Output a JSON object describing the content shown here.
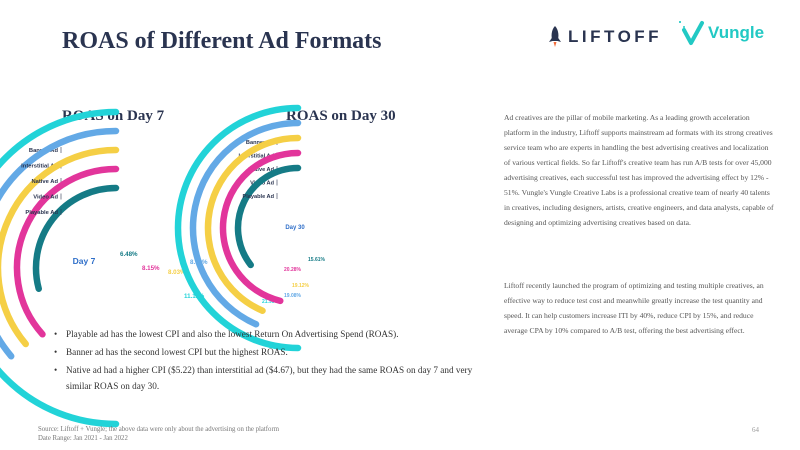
{
  "title": "ROAS of Different Ad Formats",
  "logos": {
    "liftoff": "LIFTOFF",
    "vungle": "Vungle"
  },
  "colors": {
    "banner": "#22d3d8",
    "interstitial": "#63a9e6",
    "native": "#f5cf45",
    "video": "#e2359b",
    "playable": "#157b86",
    "title": "#2a3450"
  },
  "chart_data": [
    {
      "type": "radial-bar",
      "title": "ROAS on Day 7",
      "center_label": "Day 7",
      "series": [
        {
          "name": "Banner Ad",
          "value": 11.11,
          "label": "11.11%"
        },
        {
          "name": "Interstitial Ad",
          "value": 8.03,
          "label": "8.03%"
        },
        {
          "name": "Native Ad",
          "value": 8.03,
          "label": "8.03%"
        },
        {
          "name": "Video Ad",
          "value": 8.15,
          "label": "8.15%"
        },
        {
          "name": "Playable Ad",
          "value": 6.48,
          "label": "6.48%"
        }
      ]
    },
    {
      "type": "radial-bar",
      "title": "ROAS on Day 30",
      "center_label": "Day 30",
      "series": [
        {
          "name": "Banner Ad",
          "value": 21.95,
          "label": "21.95%"
        },
        {
          "name": "Interstitial Ad",
          "value": 19.08,
          "label": "19.08%"
        },
        {
          "name": "Native Ad",
          "value": 19.12,
          "label": "19.12%"
        },
        {
          "name": "Video Ad",
          "value": 20.28,
          "label": "20.28%"
        },
        {
          "name": "Playable Ad",
          "value": 15.61,
          "label": "15.61%"
        }
      ]
    }
  ],
  "paragraphs": [
    "Ad creatives are the pillar of mobile marketing. As a leading growth acceleration platform in the industry, Liftoff supports mainstream ad formats with its strong creatives service team who are experts in handling the best advertising creatives and localization of various vertical fields. So far Liftoff's creative team has run A/B tests for over 45,000 advertising creatives, each successful test has improved the advertising effect by 12% - 51%. Vungle's Vungle Creative Labs is a professional creative team of nearly 40 talents in creatives, including designers, artists, creative engineers, and data analysts, capable of designing and optimizing advertising creatives based on data.",
    "Liftoff recently launched the program of optimizing and testing multiple creatives, an effective way to reduce test cost and meanwhile greatly increase the test quantity and speed. It can help customers increase ITI by 40%, reduce CPI by 15%, and reduce average CPA by 10% compared to A/B test, offering the best advertising effect."
  ],
  "bullets": [
    "Playable ad has the lowest CPI and also the lowest Return On Advertising Spend (ROAS).",
    "Banner ad has the second lowest CPI but the highest ROAS.",
    "Native ad had a higher CPI ($5.22) than interstitial ad ($4.67), but they had the same ROAS on day 7 and very similar ROAS on day 30."
  ],
  "bullet_symbol": "•",
  "footer": {
    "source": "Source: Liftoff + Vungle; the above data were only about the advertising on the platform",
    "date_range": "Date Range: Jan 2021 - Jan 2022"
  },
  "page_number": "64"
}
